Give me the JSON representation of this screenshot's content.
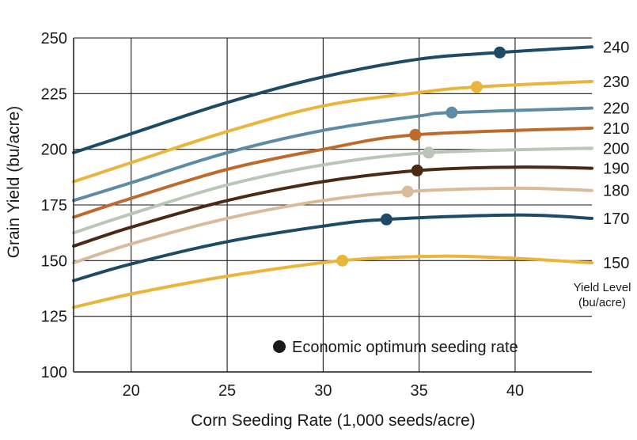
{
  "chart_data": {
    "type": "line",
    "xlabel": "Corn Seeding Rate (1,000 seeds/acre)",
    "ylabel": "Grain Yield (bu/acre)",
    "xlim": [
      17,
      44
    ],
    "ylim": [
      100,
      250
    ],
    "x_ticks": [
      20,
      25,
      30,
      35,
      40
    ],
    "y_ticks": [
      100,
      125,
      150,
      175,
      200,
      225,
      250
    ],
    "grid": true,
    "series_label_heading": [
      "Yield Level",
      "(bu/acre)"
    ],
    "legend": {
      "text": "Economic optimum seeding rate",
      "marker_color": "#1a1a1a",
      "placement": "bottom-right"
    },
    "series": [
      {
        "name": "240",
        "color": "#1e4a66",
        "x": [
          17,
          20,
          25,
          30,
          35,
          39.2,
          44
        ],
        "y": [
          198.5,
          207,
          221,
          232.5,
          240.5,
          243.5,
          246
        ],
        "optimum": {
          "x": 39.2,
          "y": 243.5
        }
      },
      {
        "name": "230",
        "color": "#e9b53a",
        "x": [
          17,
          20,
          25,
          30,
          35,
          38.0,
          44
        ],
        "y": [
          185.5,
          194,
          208,
          219.5,
          225.5,
          228,
          230.5
        ],
        "optimum": {
          "x": 38.0,
          "y": 228
        }
      },
      {
        "name": "220",
        "color": "#5e8aa6",
        "x": [
          17,
          20,
          25,
          30,
          35,
          36.7,
          44
        ],
        "y": [
          177,
          185,
          198.5,
          208.5,
          215,
          216.5,
          218.5
        ],
        "optimum": {
          "x": 36.7,
          "y": 216.5
        }
      },
      {
        "name": "210",
        "color": "#bd6a2c",
        "x": [
          17,
          20,
          25,
          30,
          34.8,
          44
        ],
        "y": [
          169.5,
          178,
          191,
          200,
          206.5,
          209.5
        ],
        "optimum": {
          "x": 34.8,
          "y": 206.5
        }
      },
      {
        "name": "200",
        "color": "#b9c7b6",
        "x": [
          17,
          20,
          25,
          30,
          35.5,
          44
        ],
        "y": [
          162.5,
          171,
          184,
          193,
          198.5,
          200.5
        ],
        "optimum": {
          "x": 35.5,
          "y": 198.5
        }
      },
      {
        "name": "190",
        "color": "#4a2a14",
        "x": [
          17,
          20,
          25,
          30,
          35,
          40,
          44
        ],
        "y": [
          156.5,
          165,
          177,
          185.5,
          190.5,
          192,
          191.5
        ],
        "optimum": {
          "x": 34.9,
          "y": 190.5
        }
      },
      {
        "name": "180",
        "color": "#d9bb9c",
        "x": [
          17,
          20,
          25,
          30,
          34.4,
          40,
          44
        ],
        "y": [
          149,
          157.5,
          169,
          177,
          181,
          182.5,
          181.5
        ],
        "optimum": {
          "x": 34.4,
          "y": 181
        }
      },
      {
        "name": "170",
        "color": "#1e4a66",
        "x": [
          17,
          20,
          25,
          30,
          33.3,
          40,
          44
        ],
        "y": [
          141,
          148.5,
          158.5,
          165.5,
          168.5,
          170.5,
          169
        ],
        "optimum": {
          "x": 33.3,
          "y": 168.5
        }
      },
      {
        "name": "150",
        "color": "#e9b53a",
        "x": [
          17,
          20,
          25,
          31,
          36,
          40,
          44
        ],
        "y": [
          129,
          135,
          143,
          150,
          152,
          151,
          149
        ],
        "optimum": {
          "x": 31.0,
          "y": 150
        }
      }
    ]
  }
}
